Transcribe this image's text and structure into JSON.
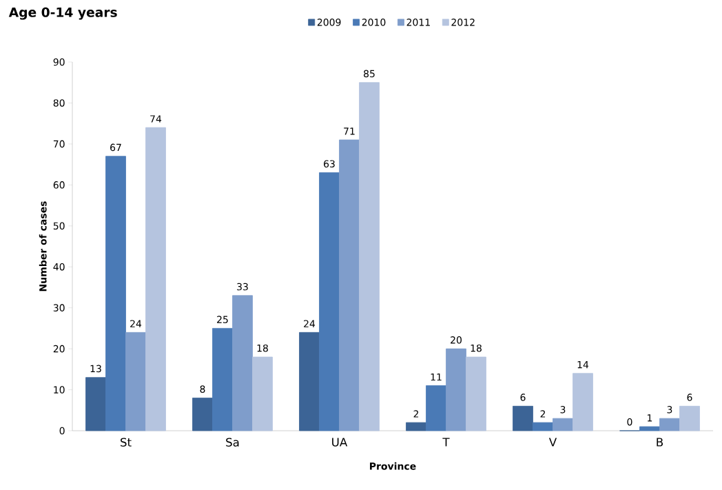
{
  "chart_data": {
    "type": "bar",
    "title": "Age 0-14 years",
    "xlabel": "Province",
    "ylabel": "Number of cases",
    "categories": [
      "St",
      "Sa",
      "UA",
      "T",
      "V",
      "B"
    ],
    "series": [
      {
        "name": "2009",
        "color": "#3c6496",
        "values": [
          13,
          8,
          24,
          2,
          6,
          0
        ]
      },
      {
        "name": "2010",
        "color": "#4a7ab6",
        "values": [
          67,
          25,
          63,
          11,
          2,
          1
        ]
      },
      {
        "name": "2011",
        "color": "#7f9dcb",
        "values": [
          24,
          33,
          71,
          20,
          3,
          3
        ]
      },
      {
        "name": "2012",
        "color": "#b5c4df",
        "values": [
          74,
          18,
          85,
          18,
          14,
          6
        ]
      }
    ],
    "ylim": [
      0,
      90
    ],
    "yticks": [
      0,
      10,
      20,
      30,
      40,
      50,
      60,
      70,
      80,
      90
    ],
    "data_labels": true,
    "legend": "top",
    "grid": false
  }
}
